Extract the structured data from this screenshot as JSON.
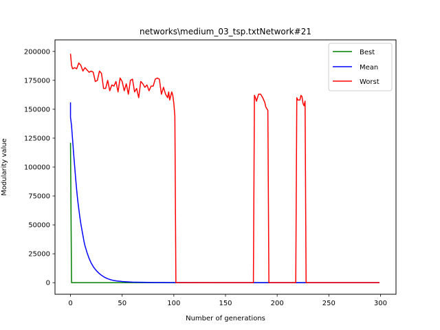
{
  "chart_data": {
    "type": "line",
    "title": "networks\\medium_03_tsp.txtNetwork#21",
    "xlabel": "Number of generations",
    "ylabel": "Modularity value",
    "xlim": [
      -15,
      315
    ],
    "ylim": [
      -10000,
      210000
    ],
    "xticks": [
      0,
      50,
      100,
      150,
      200,
      250,
      300
    ],
    "yticks": [
      0,
      25000,
      50000,
      75000,
      100000,
      125000,
      150000,
      175000,
      200000
    ],
    "grid": false,
    "legend": {
      "position": "top-right"
    },
    "series": [
      {
        "name": "Best",
        "color": "#008000",
        "points": [
          [
            0,
            121000
          ],
          [
            1,
            0
          ],
          [
            299,
            0
          ]
        ]
      },
      {
        "name": "Mean",
        "color": "#0000ff",
        "points": [
          [
            0,
            156000
          ],
          [
            0,
            143000
          ],
          [
            1,
            136000
          ],
          [
            2,
            124000
          ],
          [
            3,
            112000
          ],
          [
            4,
            101000
          ],
          [
            5,
            90000
          ],
          [
            6,
            80000
          ],
          [
            7,
            71000
          ],
          [
            8,
            64000
          ],
          [
            9,
            57000
          ],
          [
            10,
            51000
          ],
          [
            11,
            46000
          ],
          [
            12,
            41000
          ],
          [
            13,
            36000
          ],
          [
            14,
            32000
          ],
          [
            15,
            29000
          ],
          [
            16,
            26000
          ],
          [
            17,
            23500
          ],
          [
            18,
            21000
          ],
          [
            19,
            19000
          ],
          [
            20,
            17000
          ],
          [
            22,
            14000
          ],
          [
            24,
            11500
          ],
          [
            26,
            9500
          ],
          [
            28,
            7800
          ],
          [
            30,
            6400
          ],
          [
            32,
            5200
          ],
          [
            34,
            4200
          ],
          [
            36,
            3400
          ],
          [
            38,
            2800
          ],
          [
            40,
            2300
          ],
          [
            42,
            1900
          ],
          [
            44,
            1600
          ],
          [
            46,
            1400
          ],
          [
            48,
            1200
          ],
          [
            50,
            1000
          ],
          [
            55,
            700
          ],
          [
            60,
            500
          ],
          [
            70,
            300
          ],
          [
            80,
            200
          ],
          [
            90,
            150
          ],
          [
            100,
            100
          ],
          [
            150,
            50
          ],
          [
            200,
            20
          ],
          [
            299,
            10
          ]
        ]
      },
      {
        "name": "Worst",
        "color": "#ff0000",
        "points": [
          [
            0,
            198000
          ],
          [
            1,
            188000
          ],
          [
            2,
            185000
          ],
          [
            4,
            186000
          ],
          [
            6,
            185000
          ],
          [
            8,
            190000
          ],
          [
            10,
            188000
          ],
          [
            12,
            183000
          ],
          [
            14,
            186000
          ],
          [
            16,
            184000
          ],
          [
            18,
            182000
          ],
          [
            20,
            183000
          ],
          [
            22,
            182000
          ],
          [
            24,
            174000
          ],
          [
            26,
            175000
          ],
          [
            28,
            183000
          ],
          [
            30,
            181000
          ],
          [
            32,
            168000
          ],
          [
            34,
            168000
          ],
          [
            36,
            175000
          ],
          [
            38,
            166000
          ],
          [
            40,
            171000
          ],
          [
            42,
            170000
          ],
          [
            44,
            174000
          ],
          [
            46,
            165000
          ],
          [
            48,
            177000
          ],
          [
            50,
            174000
          ],
          [
            52,
            166000
          ],
          [
            54,
            172000
          ],
          [
            56,
            163000
          ],
          [
            58,
            175000
          ],
          [
            60,
            176000
          ],
          [
            62,
            165000
          ],
          [
            64,
            168000
          ],
          [
            66,
            160000
          ],
          [
            68,
            174000
          ],
          [
            70,
            172000
          ],
          [
            72,
            169000
          ],
          [
            74,
            171000
          ],
          [
            76,
            166000
          ],
          [
            78,
            170000
          ],
          [
            80,
            170000
          ],
          [
            82,
            176000
          ],
          [
            84,
            177000
          ],
          [
            86,
            176000
          ],
          [
            88,
            163000
          ],
          [
            90,
            169000
          ],
          [
            92,
            163000
          ],
          [
            94,
            160000
          ],
          [
            95,
            165000
          ],
          [
            96,
            158000
          ],
          [
            98,
            165000
          ],
          [
            99,
            162000
          ],
          [
            100,
            155000
          ],
          [
            101,
            144000
          ],
          [
            102,
            0
          ],
          [
            177,
            0
          ],
          [
            178,
            162000
          ],
          [
            179,
            160000
          ],
          [
            180,
            157000
          ],
          [
            182,
            163000
          ],
          [
            184,
            163000
          ],
          [
            186,
            160000
          ],
          [
            188,
            156000
          ],
          [
            189,
            152000
          ],
          [
            191,
            149000
          ],
          [
            192,
            0
          ],
          [
            218,
            0
          ],
          [
            219,
            160000
          ],
          [
            220,
            158000
          ],
          [
            222,
            158000
          ],
          [
            223,
            162000
          ],
          [
            224,
            161000
          ],
          [
            225,
            155000
          ],
          [
            226,
            153000
          ],
          [
            227,
            157000
          ],
          [
            228,
            0
          ],
          [
            299,
            0
          ]
        ]
      }
    ]
  }
}
